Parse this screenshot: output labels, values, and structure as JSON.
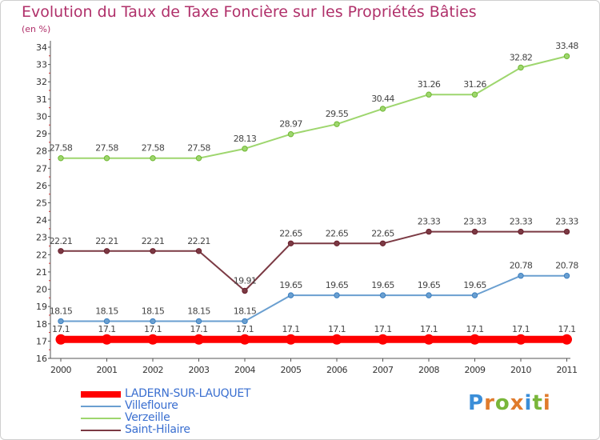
{
  "colors": {
    "title": "#b0306a",
    "axis": "#555555",
    "grid": "#e3e3e3"
  },
  "logo": {
    "text": "Proxiti",
    "letters": [
      {
        "ch": "P",
        "color": "#3b8ed8"
      },
      {
        "ch": "r",
        "color": "#e07b2c"
      },
      {
        "ch": "o",
        "color": "#79b63a"
      },
      {
        "ch": "x",
        "color": "#e07b2c"
      },
      {
        "ch": "i",
        "color": "#3b8ed8"
      },
      {
        "ch": "t",
        "color": "#79b63a"
      },
      {
        "ch": "i",
        "color": "#e07b2c"
      }
    ]
  },
  "chart_data": {
    "type": "line",
    "title": "Evolution du Taux de Taxe Foncière sur les Propriétés Bâties",
    "ylabel": "(en %)",
    "xlabel": "",
    "categories": [
      "2000",
      "2001",
      "2002",
      "2003",
      "2004",
      "2005",
      "2006",
      "2007",
      "2008",
      "2009",
      "2010",
      "2011"
    ],
    "ylim": [
      16,
      34
    ],
    "yticks": [
      16,
      17,
      18,
      19,
      20,
      21,
      22,
      23,
      24,
      25,
      26,
      27,
      28,
      29,
      30,
      31,
      32,
      33,
      34
    ],
    "grid": false,
    "legend_position": "bottom-left",
    "series": [
      {
        "name": "LADERN-SUR-LAUQUET",
        "color": "#ff0000",
        "point_color": "#ff0000",
        "width": 9,
        "highlight": true,
        "values": [
          17.1,
          17.1,
          17.1,
          17.1,
          17.1,
          17.1,
          17.1,
          17.1,
          17.1,
          17.1,
          17.1,
          17.1
        ],
        "labels": [
          "17.1",
          "17.1",
          "17.1",
          "17.1",
          "17.1",
          "17.1",
          "17.1",
          "17.1",
          "17.1",
          "17.1",
          "17.1",
          "17.1"
        ]
      },
      {
        "name": "Villefloure",
        "color": "#6a9fd0",
        "point_color": "#3b7fc0",
        "width": 2,
        "highlight": false,
        "values": [
          18.15,
          18.15,
          18.15,
          18.15,
          18.15,
          19.65,
          19.65,
          19.65,
          19.65,
          19.65,
          20.78,
          20.78
        ],
        "labels": [
          "18.15",
          "18.15",
          "18.15",
          "18.15",
          "18.15",
          "19.65",
          "19.65",
          "19.65",
          "19.65",
          "19.65",
          "20.78",
          "20.78"
        ]
      },
      {
        "name": "Verzeille",
        "color": "#9ed66e",
        "point_color": "#6fb832",
        "width": 2,
        "highlight": false,
        "values": [
          27.58,
          27.58,
          27.58,
          27.58,
          28.13,
          28.97,
          29.55,
          30.44,
          31.26,
          31.26,
          32.82,
          33.48
        ],
        "labels": [
          "27.58",
          "27.58",
          "27.58",
          "27.58",
          "28.13",
          "28.97",
          "29.55",
          "30.44",
          "31.26",
          "31.26",
          "32.82",
          "33.48"
        ]
      },
      {
        "name": "Saint-Hilaire",
        "color": "#7b3a44",
        "point_color": "#6a1f2c",
        "width": 2,
        "highlight": false,
        "values": [
          22.21,
          22.21,
          22.21,
          22.21,
          19.91,
          22.65,
          22.65,
          22.65,
          23.33,
          23.33,
          23.33,
          23.33
        ],
        "labels": [
          "22.21",
          "22.21",
          "22.21",
          "22.21",
          "19.91",
          "22.65",
          "22.65",
          "22.65",
          "23.33",
          "23.33",
          "23.33",
          "23.33"
        ]
      }
    ]
  }
}
